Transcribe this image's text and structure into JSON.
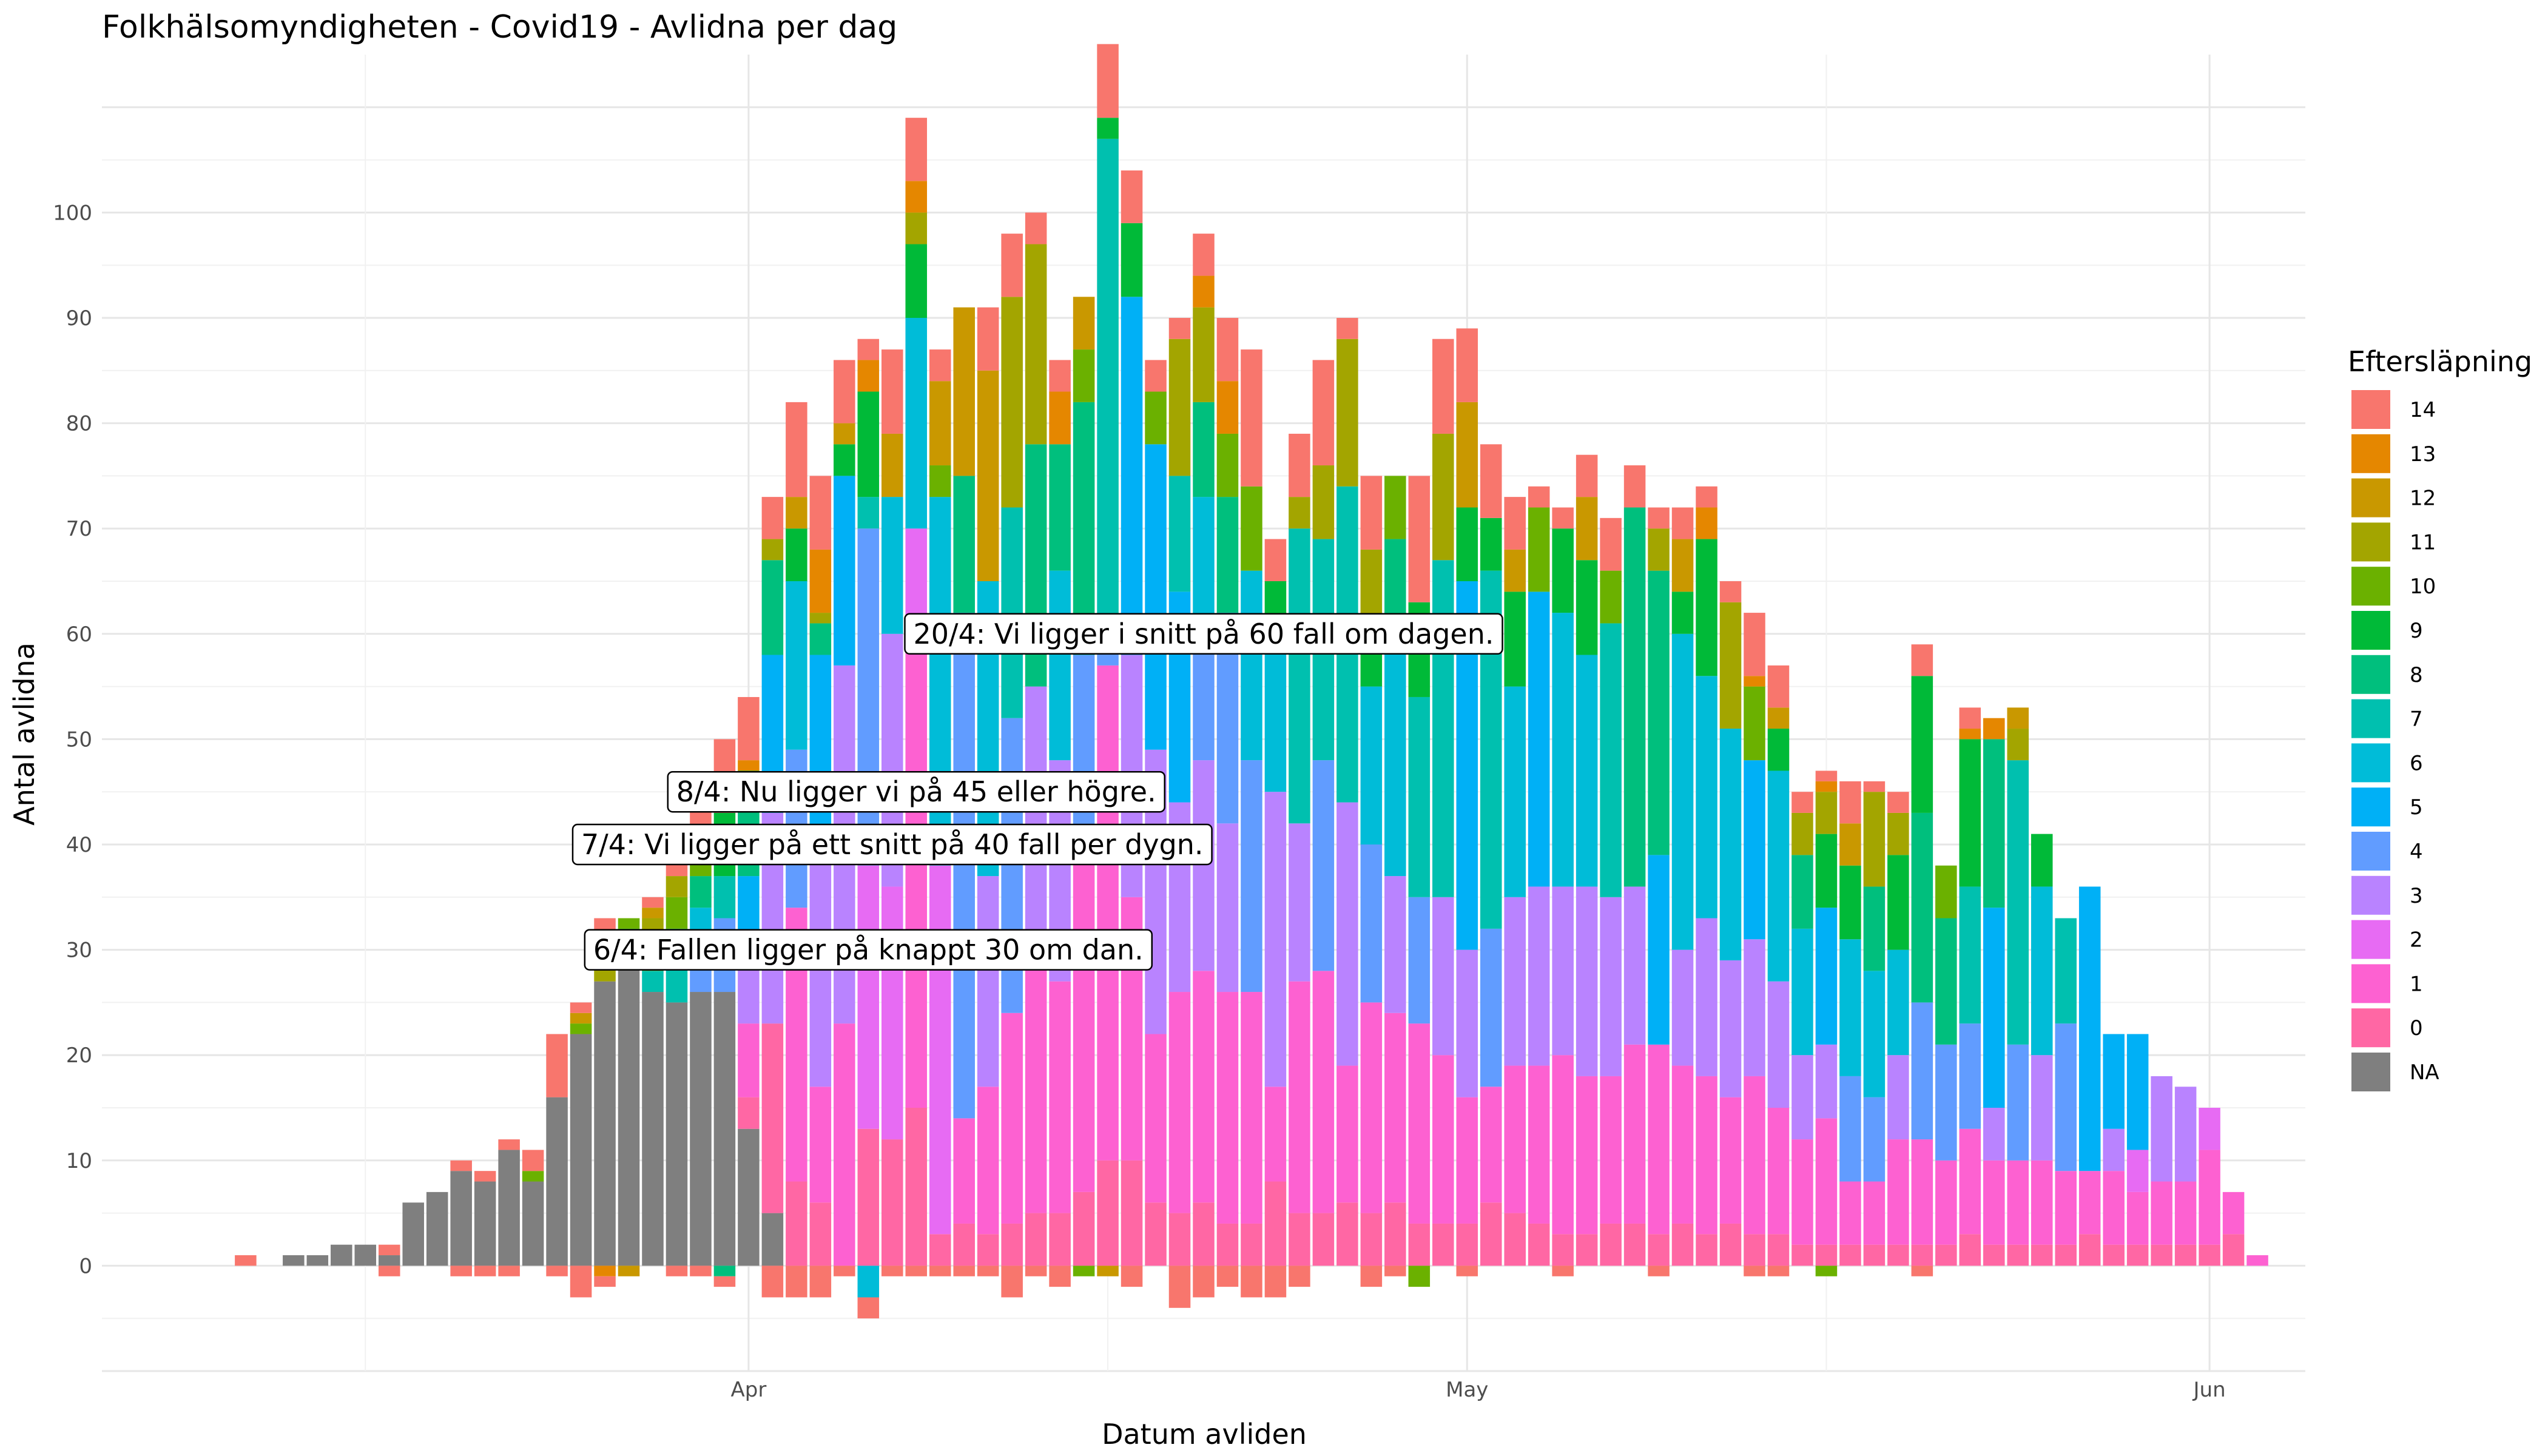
{
  "chart_data": {
    "type": "bar",
    "stacked": true,
    "title": "Folkhälsomyndigheten - Covid19 - Avlidna per dag",
    "xlabel": "Datum avliden",
    "ylabel": "Antal avlidna",
    "ylim": [
      -10,
      115
    ],
    "xlim": [
      "2020-03-05",
      "2020-06-05"
    ],
    "y_ticks": [
      0,
      10,
      20,
      30,
      40,
      50,
      60,
      70,
      80,
      90,
      100
    ],
    "x_ticks": [
      {
        "date": "2020-04-01",
        "label": "Apr"
      },
      {
        "date": "2020-05-01",
        "label": "May"
      },
      {
        "date": "2020-06-01",
        "label": "Jun"
      }
    ],
    "grid": true,
    "legend": {
      "title": "Eftersläpning",
      "position": "right",
      "entries": [
        {
          "label": "14",
          "color": "#F8766D"
        },
        {
          "label": "13",
          "color": "#E58700"
        },
        {
          "label": "12",
          "color": "#C99800"
        },
        {
          "label": "11",
          "color": "#A3A500"
        },
        {
          "label": "10",
          "color": "#6BB100"
        },
        {
          "label": "9",
          "color": "#00BA38"
        },
        {
          "label": "8",
          "color": "#00BF7D"
        },
        {
          "label": "7",
          "color": "#00C0AF"
        },
        {
          "label": "6",
          "color": "#00BCD8"
        },
        {
          "label": "5",
          "color": "#00B0F6"
        },
        {
          "label": "4",
          "color": "#619CFF"
        },
        {
          "label": "3",
          "color": "#B983FF"
        },
        {
          "label": "2",
          "color": "#E76BF3"
        },
        {
          "label": "1",
          "color": "#FD61D1"
        },
        {
          "label": "0",
          "color": "#FF67A4"
        },
        {
          "label": "NA",
          "color": "#7F7F7F"
        }
      ]
    },
    "annotations": [
      {
        "date": "2020-04-20",
        "y": 60,
        "text": "20/4: Vi ligger i snitt på 60 fall om dagen."
      },
      {
        "date": "2020-04-08",
        "y": 45,
        "text": "8/4: Nu ligger vi på 45 eller högre."
      },
      {
        "date": "2020-04-07",
        "y": 40,
        "text": "7/4: Vi ligger på ett snitt på 40 fall per dygn."
      },
      {
        "date": "2020-04-06",
        "y": 30,
        "text": "6/4: Fallen ligger på knappt 30 om dan."
      }
    ],
    "series_order": [
      "NA",
      "0",
      "1",
      "2",
      "3",
      "4",
      "5",
      "6",
      "7",
      "8",
      "9",
      "10",
      "11",
      "12",
      "13",
      "14"
    ],
    "bars": [
      {
        "date": "2020-03-11",
        "segments": {
          "14": 1
        }
      },
      {
        "date": "2020-03-13",
        "segments": {
          "NA": 1
        }
      },
      {
        "date": "2020-03-14",
        "segments": {
          "NA": 1
        }
      },
      {
        "date": "2020-03-15",
        "segments": {
          "NA": 2
        }
      },
      {
        "date": "2020-03-16",
        "segments": {
          "NA": 2
        }
      },
      {
        "date": "2020-03-17",
        "segments": {
          "NA": 1,
          "14": 1
        },
        "negative": {
          "14": -1
        }
      },
      {
        "date": "2020-03-18",
        "segments": {
          "NA": 6
        }
      },
      {
        "date": "2020-03-19",
        "segments": {
          "NA": 7
        }
      },
      {
        "date": "2020-03-20",
        "segments": {
          "NA": 9,
          "14": 1
        },
        "negative": {
          "14": -1
        }
      },
      {
        "date": "2020-03-21",
        "segments": {
          "NA": 8,
          "14": 1
        },
        "negative": {
          "14": -1
        }
      },
      {
        "date": "2020-03-22",
        "segments": {
          "NA": 11,
          "14": 1
        },
        "negative": {
          "14": -1
        }
      },
      {
        "date": "2020-03-23",
        "segments": {
          "NA": 8,
          "10": 1,
          "14": 2
        }
      },
      {
        "date": "2020-03-24",
        "segments": {
          "NA": 16,
          "14": 6
        },
        "negative": {
          "14": -1
        }
      },
      {
        "date": "2020-03-25",
        "segments": {
          "NA": 22,
          "10": 1,
          "12": 1,
          "14": 1
        },
        "negative": {
          "14": -3
        }
      },
      {
        "date": "2020-03-26",
        "segments": {
          "NA": 27,
          "11": 3,
          "14": 3
        },
        "negative": {
          "13": -1,
          "14": -1
        }
      },
      {
        "date": "2020-03-27",
        "segments": {
          "NA": 31,
          "9": 1,
          "10": 1
        },
        "negative": {
          "12": -1
        }
      },
      {
        "date": "2020-03-28",
        "segments": {
          "NA": 26,
          "7": 2,
          "10": 2,
          "11": 3,
          "12": 1,
          "14": 1
        }
      },
      {
        "date": "2020-03-29",
        "segments": {
          "NA": 25,
          "7": 4,
          "8": 3,
          "10": 3,
          "11": 2,
          "14": 2
        },
        "negative": {
          "14": -1
        }
      },
      {
        "date": "2020-03-30",
        "segments": {
          "NA": 26,
          "4": 4,
          "6": 4,
          "8": 3,
          "10": 3,
          "14": 6
        },
        "negative": {
          "14": -1
        }
      },
      {
        "date": "2020-03-31",
        "segments": {
          "NA": 26,
          "4": 7,
          "7": 4,
          "9": 6,
          "14": 7
        },
        "negative": {
          "8": -1,
          "14": -1
        }
      },
      {
        "date": "2020-04-01",
        "segments": {
          "NA": 13,
          "0": 3,
          "1": 7,
          "3": 8,
          "5": 6,
          "8": 9,
          "9": 1,
          "13": 1,
          "14": 6
        }
      },
      {
        "date": "2020-04-02",
        "segments": {
          "NA": 5,
          "0": 18,
          "3": 20,
          "5": 15,
          "8": 9,
          "11": 2,
          "14": 4
        },
        "negative": {
          "14": -3
        }
      },
      {
        "date": "2020-04-03",
        "segments": {
          "0": 8,
          "1": 26,
          "4": 15,
          "6": 16,
          "9": 5,
          "12": 3,
          "14": 9
        },
        "negative": {
          "14": -3
        }
      },
      {
        "date": "2020-04-04",
        "segments": {
          "0": 6,
          "1": 11,
          "3": 23,
          "5": 18,
          "8": 3,
          "11": 1,
          "13": 6,
          "14": 7
        },
        "negative": {
          "14": -3
        }
      },
      {
        "date": "2020-04-05",
        "segments": {
          "1": 23,
          "3": 34,
          "5": 18,
          "9": 3,
          "12": 2,
          "14": 6
        },
        "negative": {
          "14": -1
        }
      },
      {
        "date": "2020-04-06",
        "segments": {
          "0": 13,
          "2": 25,
          "4": 32,
          "7": 3,
          "9": 10,
          "13": 3,
          "14": 2
        },
        "negative": {
          "6": -3,
          "14": -2
        }
      },
      {
        "date": "2020-04-07",
        "segments": {
          "0": 12,
          "2": 24,
          "3": 24,
          "6": 13,
          "12": 6,
          "14": 8
        },
        "negative": {
          "14": -1
        }
      },
      {
        "date": "2020-04-08",
        "segments": {
          "0": 15,
          "1": 44,
          "2": 11,
          "6": 20,
          "9": 7,
          "11": 3,
          "13": 3,
          "14": 6
        },
        "negative": {
          "14": -1
        }
      },
      {
        "date": "2020-04-09",
        "segments": {
          "0": 3,
          "2": 35,
          "6": 35,
          "10": 3,
          "12": 8,
          "14": 3
        },
        "negative": {
          "14": -1
        }
      },
      {
        "date": "2020-04-10",
        "segments": {
          "0": 4,
          "1": 10,
          "4": 48,
          "8": 13,
          "12": 16
        },
        "negative": {
          "14": -1
        }
      },
      {
        "date": "2020-04-11",
        "segments": {
          "0": 3,
          "1": 14,
          "3": 20,
          "6": 28,
          "12": 20,
          "14": 6
        },
        "negative": {
          "14": -1
        }
      },
      {
        "date": "2020-04-12",
        "segments": {
          "0": 4,
          "1": 20,
          "4": 28,
          "7": 20,
          "11": 20,
          "14": 6
        },
        "negative": {
          "14": -3
        }
      },
      {
        "date": "2020-04-13",
        "segments": {
          "0": 5,
          "1": 25,
          "3": 25,
          "8": 23,
          "11": 19,
          "14": 3
        },
        "negative": {
          "14": -1
        }
      },
      {
        "date": "2020-04-14",
        "segments": {
          "0": 5,
          "1": 22,
          "3": 21,
          "6": 18,
          "8": 12,
          "13": 5,
          "14": 3
        },
        "negative": {
          "14": -2
        }
      },
      {
        "date": "2020-04-15",
        "segments": {
          "0": 7,
          "1": 34,
          "4": 17,
          "8": 24,
          "10": 5,
          "12": 5
        },
        "negative": {
          "10": -1
        }
      },
      {
        "date": "2020-04-16",
        "segments": {
          "0": 10,
          "1": 47,
          "4": 4,
          "7": 46,
          "9": 2,
          "14": 7
        },
        "negative": {
          "12": -1
        }
      },
      {
        "date": "2020-04-17",
        "segments": {
          "0": 10,
          "1": 25,
          "3": 23,
          "5": 34,
          "9": 7,
          "14": 5
        },
        "negative": {
          "14": -2
        }
      },
      {
        "date": "2020-04-18",
        "segments": {
          "0": 6,
          "1": 16,
          "3": 27,
          "5": 29,
          "10": 5,
          "14": 3
        }
      },
      {
        "date": "2020-04-19",
        "segments": {
          "0": 5,
          "1": 21,
          "3": 18,
          "5": 20,
          "7": 11,
          "11": 13,
          "14": 2
        },
        "negative": {
          "14": -4
        }
      },
      {
        "date": "2020-04-20",
        "segments": {
          "0": 6,
          "1": 22,
          "3": 20,
          "4": 12,
          "6": 13,
          "8": 9,
          "11": 9,
          "13": 3,
          "14": 4
        },
        "negative": {
          "14": -3
        }
      },
      {
        "date": "2020-04-21",
        "segments": {
          "0": 4,
          "1": 22,
          "3": 16,
          "4": 20,
          "8": 11,
          "10": 6,
          "13": 5,
          "14": 6
        },
        "negative": {
          "14": -2
        }
      },
      {
        "date": "2020-04-22",
        "segments": {
          "0": 4,
          "1": 22,
          "4": 22,
          "6": 18,
          "10": 8,
          "14": 13
        },
        "negative": {
          "14": -3
        }
      },
      {
        "date": "2020-04-23",
        "segments": {
          "0": 8,
          "1": 9,
          "3": 28,
          "6": 15,
          "9": 5,
          "14": 4
        },
        "negative": {
          "14": -3
        }
      },
      {
        "date": "2020-04-24",
        "segments": {
          "0": 5,
          "1": 22,
          "3": 15,
          "7": 28,
          "11": 3,
          "14": 6
        },
        "negative": {
          "14": -2
        }
      },
      {
        "date": "2020-04-25",
        "segments": {
          "0": 5,
          "1": 23,
          "4": 20,
          "7": 21,
          "11": 7,
          "14": 10
        }
      },
      {
        "date": "2020-04-26",
        "segments": {
          "0": 6,
          "1": 13,
          "3": 25,
          "7": 30,
          "11": 14,
          "14": 2
        }
      },
      {
        "date": "2020-04-27",
        "segments": {
          "0": 5,
          "1": 20,
          "4": 15,
          "6": 15,
          "9": 4,
          "11": 9,
          "14": 7
        },
        "negative": {
          "14": -2
        }
      },
      {
        "date": "2020-04-28",
        "segments": {
          "0": 6,
          "1": 18,
          "3": 13,
          "6": 22,
          "8": 10,
          "10": 6
        },
        "negative": {
          "14": -1
        }
      },
      {
        "date": "2020-04-29",
        "segments": {
          "0": 4,
          "1": 19,
          "4": 12,
          "7": 19,
          "9": 9,
          "14": 12
        },
        "negative": {
          "10": -2
        }
      },
      {
        "date": "2020-04-30",
        "segments": {
          "0": 4,
          "1": 16,
          "3": 15,
          "7": 32,
          "11": 12,
          "14": 9
        }
      },
      {
        "date": "2020-05-01",
        "segments": {
          "0": 4,
          "1": 12,
          "3": 14,
          "5": 35,
          "9": 7,
          "12": 10,
          "14": 7
        },
        "negative": {
          "14": -1
        }
      },
      {
        "date": "2020-05-02",
        "segments": {
          "0": 6,
          "1": 11,
          "4": 15,
          "7": 34,
          "9": 5,
          "14": 7
        }
      },
      {
        "date": "2020-05-03",
        "segments": {
          "0": 5,
          "1": 14,
          "3": 16,
          "6": 20,
          "9": 9,
          "12": 4,
          "14": 5
        }
      },
      {
        "date": "2020-05-04",
        "segments": {
          "0": 4,
          "1": 15,
          "3": 17,
          "5": 28,
          "10": 8,
          "14": 2
        }
      },
      {
        "date": "2020-05-05",
        "segments": {
          "0": 3,
          "1": 17,
          "3": 16,
          "6": 26,
          "9": 8,
          "14": 2
        },
        "negative": {
          "14": -1
        }
      },
      {
        "date": "2020-05-06",
        "segments": {
          "0": 3,
          "1": 15,
          "3": 18,
          "6": 22,
          "9": 9,
          "12": 6,
          "14": 4
        }
      },
      {
        "date": "2020-05-07",
        "segments": {
          "0": 4,
          "1": 14,
          "3": 17,
          "7": 26,
          "10": 5,
          "14": 5
        }
      },
      {
        "date": "2020-05-08",
        "segments": {
          "0": 4,
          "1": 17,
          "3": 15,
          "8": 36,
          "14": 4
        }
      },
      {
        "date": "2020-05-09",
        "segments": {
          "0": 3,
          "1": 18,
          "5": 18,
          "8": 27,
          "11": 4,
          "14": 2
        },
        "negative": {
          "14": -1
        }
      },
      {
        "date": "2020-05-10",
        "segments": {
          "0": 4,
          "1": 15,
          "3": 11,
          "6": 30,
          "9": 4,
          "12": 5,
          "14": 3
        }
      },
      {
        "date": "2020-05-11",
        "segments": {
          "0": 3,
          "1": 15,
          "3": 15,
          "6": 23,
          "9": 13,
          "13": 3,
          "14": 2
        }
      },
      {
        "date": "2020-05-12",
        "segments": {
          "0": 4,
          "1": 12,
          "3": 13,
          "6": 22,
          "11": 12,
          "14": 2
        }
      },
      {
        "date": "2020-05-13",
        "segments": {
          "0": 3,
          "1": 15,
          "3": 13,
          "5": 17,
          "10": 7,
          "13": 1,
          "14": 6
        },
        "negative": {
          "14": -1
        }
      },
      {
        "date": "2020-05-14",
        "segments": {
          "0": 3,
          "1": 12,
          "3": 12,
          "6": 20,
          "9": 4,
          "12": 2,
          "14": 4
        },
        "negative": {
          "14": -1
        }
      },
      {
        "date": "2020-05-15",
        "segments": {
          "0": 2,
          "1": 10,
          "3": 8,
          "6": 12,
          "8": 7,
          "11": 4,
          "14": 2
        }
      },
      {
        "date": "2020-05-16",
        "segments": {
          "0": 2,
          "1": 12,
          "3": 7,
          "5": 13,
          "9": 7,
          "11": 4,
          "13": 1,
          "14": 1
        },
        "negative": {
          "10": -1
        }
      },
      {
        "date": "2020-05-17",
        "segments": {
          "0": 2,
          "1": 6,
          "4": 10,
          "6": 13,
          "9": 7,
          "12": 4,
          "14": 4
        }
      },
      {
        "date": "2020-05-18",
        "segments": {
          "0": 2,
          "1": 6,
          "4": 8,
          "6": 12,
          "8": 8,
          "11": 9,
          "14": 1
        }
      },
      {
        "date": "2020-05-19",
        "segments": {
          "0": 2,
          "1": 10,
          "3": 8,
          "6": 10,
          "9": 9,
          "11": 4,
          "14": 2
        }
      },
      {
        "date": "2020-05-20",
        "segments": {
          "0": 2,
          "1": 10,
          "4": 13,
          "8": 18,
          "9": 13,
          "14": 3
        },
        "negative": {
          "14": -1
        }
      },
      {
        "date": "2020-05-21",
        "segments": {
          "0": 2,
          "1": 8,
          "4": 11,
          "8": 12,
          "10": 5
        }
      },
      {
        "date": "2020-05-22",
        "segments": {
          "0": 3,
          "1": 10,
          "4": 10,
          "7": 13,
          "9": 14,
          "13": 1,
          "14": 2
        }
      },
      {
        "date": "2020-05-23",
        "segments": {
          "0": 2,
          "1": 8,
          "3": 5,
          "5": 19,
          "8": 16,
          "13": 2
        }
      },
      {
        "date": "2020-05-24",
        "segments": {
          "0": 2,
          "1": 8,
          "4": 11,
          "7": 27,
          "11": 3,
          "12": 2
        }
      },
      {
        "date": "2020-05-25",
        "segments": {
          "0": 2,
          "1": 8,
          "3": 10,
          "6": 16,
          "9": 5
        }
      },
      {
        "date": "2020-05-26",
        "segments": {
          "0": 2,
          "1": 7,
          "4": 14,
          "7": 10
        }
      },
      {
        "date": "2020-05-27",
        "segments": {
          "0": 3,
          "1": 6,
          "5": 27
        }
      },
      {
        "date": "2020-05-28",
        "segments": {
          "0": 2,
          "1": 7,
          "3": 4,
          "5": 9
        }
      },
      {
        "date": "2020-05-29",
        "segments": {
          "0": 2,
          "1": 5,
          "2": 4,
          "5": 11
        }
      },
      {
        "date": "2020-05-30",
        "segments": {
          "0": 2,
          "1": 6,
          "3": 10
        }
      },
      {
        "date": "2020-05-31",
        "segments": {
          "0": 2,
          "1": 6,
          "3": 9
        }
      },
      {
        "date": "2020-06-01",
        "segments": {
          "0": 2,
          "1": 9,
          "2": 4
        }
      },
      {
        "date": "2020-06-02",
        "segments": {
          "0": 3,
          "1": 4
        }
      },
      {
        "date": "2020-06-03",
        "segments": {
          "1": 1
        }
      }
    ]
  }
}
